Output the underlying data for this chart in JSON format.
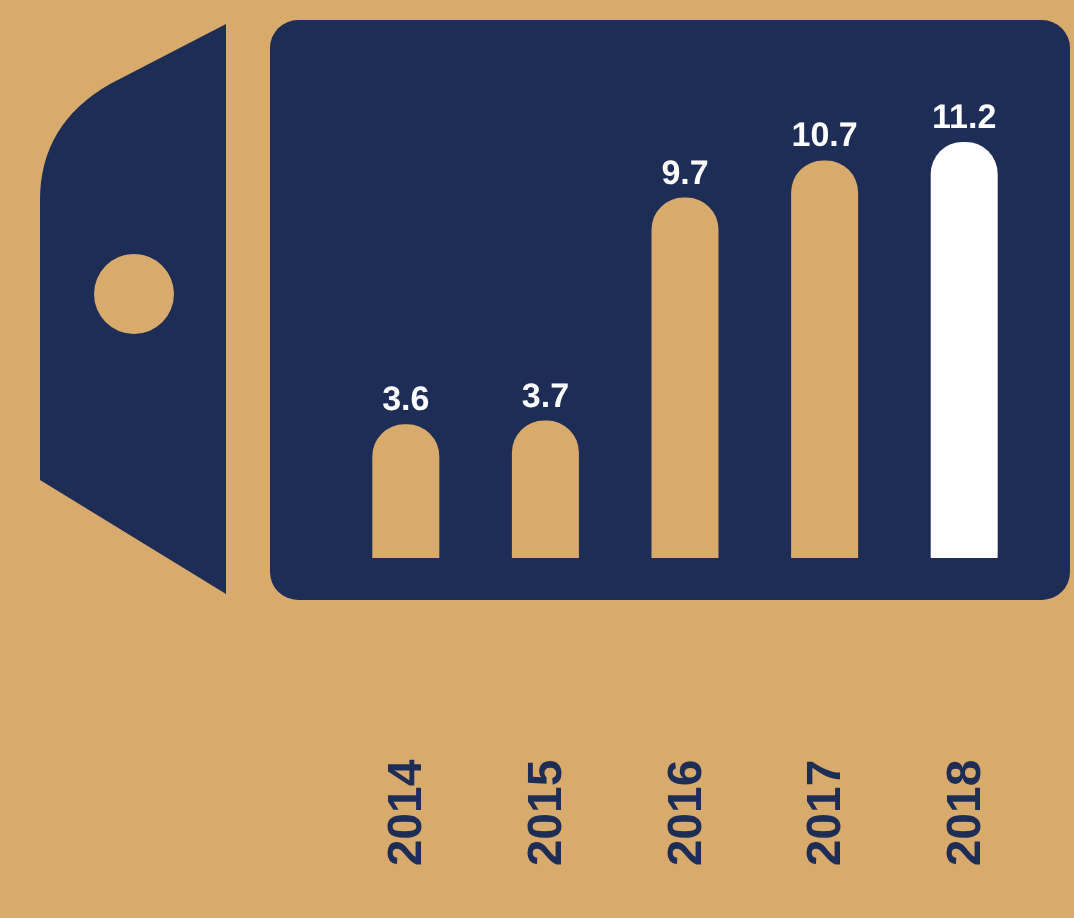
{
  "chart_data": {
    "type": "bar",
    "categories": [
      "2014",
      "2015",
      "2016",
      "2017",
      "2018"
    ],
    "values": [
      3.6,
      3.7,
      9.7,
      10.7,
      11.2
    ],
    "colors": [
      "#d8ab6c",
      "#d8ab6c",
      "#d8ab6c",
      "#d8ab6c",
      "#ffffff"
    ],
    "data_labels": true,
    "grid": false
  }
}
